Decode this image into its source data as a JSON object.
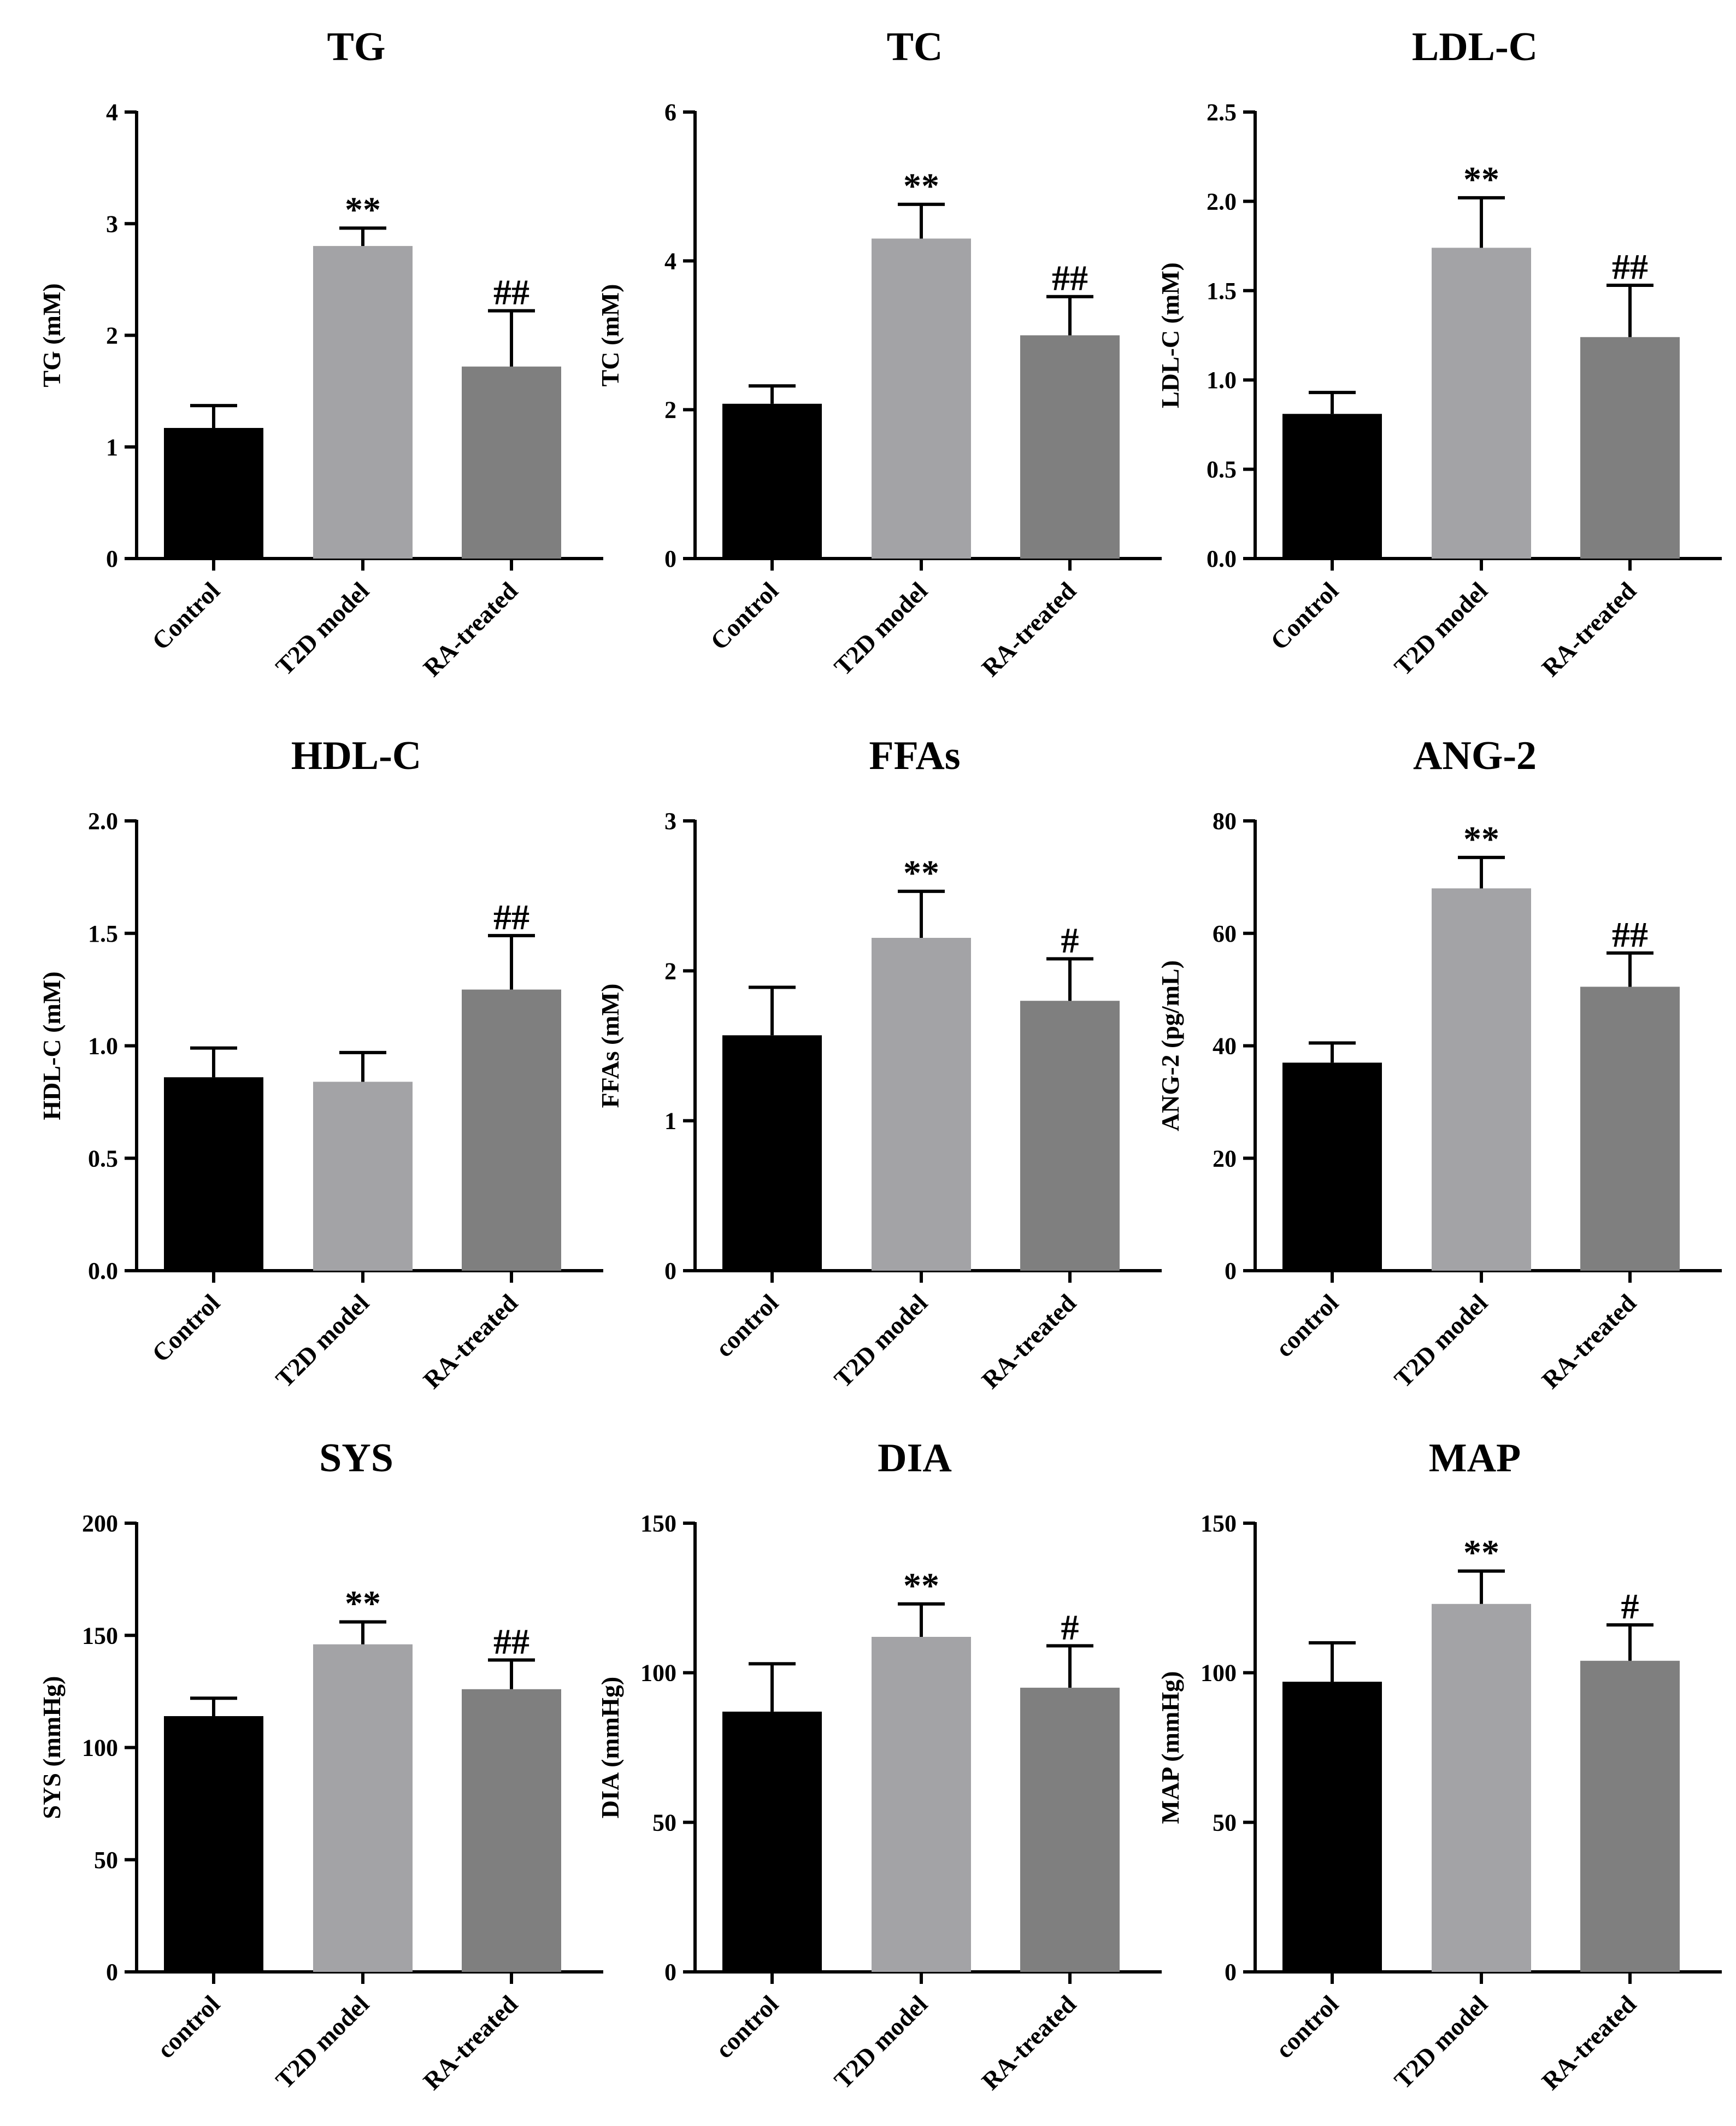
{
  "figure": {
    "background": "#ffffff"
  },
  "colors": {
    "control": "#000000",
    "t2d": "#a3a3a6",
    "ra": "#7f7f7f",
    "axis": "#000000"
  },
  "chart_data": [
    {
      "type": "bar",
      "title": "TG",
      "ylabel": "TG (mM)",
      "ylim": [
        0,
        4
      ],
      "yticks": [
        0,
        1,
        2,
        3,
        4
      ],
      "tick_labels": [
        "0",
        "1",
        "2",
        "3",
        "4"
      ],
      "categories": [
        "Control",
        "T2D model",
        "RA-treated"
      ],
      "values": [
        1.17,
        2.8,
        1.72
      ],
      "errors": [
        0.2,
        0.16,
        0.5
      ],
      "significance": [
        "",
        "**",
        "##"
      ]
    },
    {
      "type": "bar",
      "title": "TC",
      "ylabel": "TC (mM)",
      "ylim": [
        0,
        6
      ],
      "yticks": [
        0,
        2,
        4,
        6
      ],
      "tick_labels": [
        "0",
        "2",
        "4",
        "6"
      ],
      "categories": [
        "Control",
        "T2D model",
        "RA-treated"
      ],
      "values": [
        2.08,
        4.3,
        3.0
      ],
      "errors": [
        0.24,
        0.46,
        0.52
      ],
      "significance": [
        "",
        "**",
        "##"
      ]
    },
    {
      "type": "bar",
      "title": "LDL-C",
      "ylabel": "LDL-C (mM)",
      "ylim": [
        0,
        2.5
      ],
      "yticks": [
        0,
        0.5,
        1.0,
        1.5,
        2.0,
        2.5
      ],
      "tick_labels": [
        "0.0",
        "0.5",
        "1.0",
        "1.5",
        "2.0",
        "2.5"
      ],
      "categories": [
        "Control",
        "T2D model",
        "RA-treated"
      ],
      "values": [
        0.81,
        1.74,
        1.24
      ],
      "errors": [
        0.12,
        0.28,
        0.29
      ],
      "significance": [
        "",
        "**",
        "##"
      ]
    },
    {
      "type": "bar",
      "title": "HDL-C",
      "ylabel": "HDL-C (mM)",
      "ylim": [
        0,
        2.0
      ],
      "yticks": [
        0,
        0.5,
        1.0,
        1.5,
        2.0
      ],
      "tick_labels": [
        "0.0",
        "0.5",
        "1.0",
        "1.5",
        "2.0"
      ],
      "categories": [
        "Control",
        "T2D model",
        "RA-treated"
      ],
      "values": [
        0.86,
        0.84,
        1.25
      ],
      "errors": [
        0.13,
        0.13,
        0.24
      ],
      "significance": [
        "",
        "",
        "##"
      ]
    },
    {
      "type": "bar",
      "title": "FFAs",
      "ylabel": "FFAs (mM)",
      "ylim": [
        0,
        3
      ],
      "yticks": [
        0,
        1,
        2,
        3
      ],
      "tick_labels": [
        "0",
        "1",
        "2",
        "3"
      ],
      "categories": [
        "control",
        "T2D model",
        "RA-treated"
      ],
      "values": [
        1.57,
        2.22,
        1.8
      ],
      "errors": [
        0.32,
        0.31,
        0.28
      ],
      "significance": [
        "",
        "**",
        "#"
      ]
    },
    {
      "type": "bar",
      "title": "ANG-2",
      "ylabel": "ANG-2 (pg/mL)",
      "ylim": [
        0,
        80
      ],
      "yticks": [
        0,
        20,
        40,
        60,
        80
      ],
      "tick_labels": [
        "0",
        "20",
        "40",
        "60",
        "80"
      ],
      "categories": [
        "control",
        "T2D model",
        "RA-treated"
      ],
      "values": [
        37,
        68,
        50.5
      ],
      "errors": [
        3.5,
        5.5,
        6.0
      ],
      "significance": [
        "",
        "**",
        "##"
      ]
    },
    {
      "type": "bar",
      "title": "SYS",
      "ylabel": "SYS (mmHg)",
      "ylim": [
        0,
        200
      ],
      "yticks": [
        0,
        50,
        100,
        150,
        200
      ],
      "tick_labels": [
        "0",
        "50",
        "100",
        "150",
        "200"
      ],
      "categories": [
        "control",
        "T2D model",
        "RA-treated"
      ],
      "values": [
        114,
        146,
        126
      ],
      "errors": [
        8,
        10,
        13
      ],
      "significance": [
        "",
        "**",
        "##"
      ]
    },
    {
      "type": "bar",
      "title": "DIA",
      "ylabel": "DIA (mmHg)",
      "ylim": [
        0,
        150
      ],
      "yticks": [
        0,
        50,
        100,
        150
      ],
      "tick_labels": [
        "0",
        "50",
        "100",
        "150"
      ],
      "categories": [
        "control",
        "T2D model",
        "RA-treated"
      ],
      "values": [
        87,
        112,
        95
      ],
      "errors": [
        16,
        11,
        14
      ],
      "significance": [
        "",
        "**",
        "#"
      ]
    },
    {
      "type": "bar",
      "title": "MAP",
      "ylabel": "MAP (mmHg)",
      "ylim": [
        0,
        150
      ],
      "yticks": [
        0,
        50,
        100,
        150
      ],
      "tick_labels": [
        "0",
        "50",
        "100",
        "150"
      ],
      "categories": [
        "control",
        "T2D model",
        "RA-treated"
      ],
      "values": [
        97,
        123,
        104
      ],
      "errors": [
        13,
        11,
        12
      ],
      "significance": [
        "",
        "**",
        "#"
      ]
    }
  ]
}
